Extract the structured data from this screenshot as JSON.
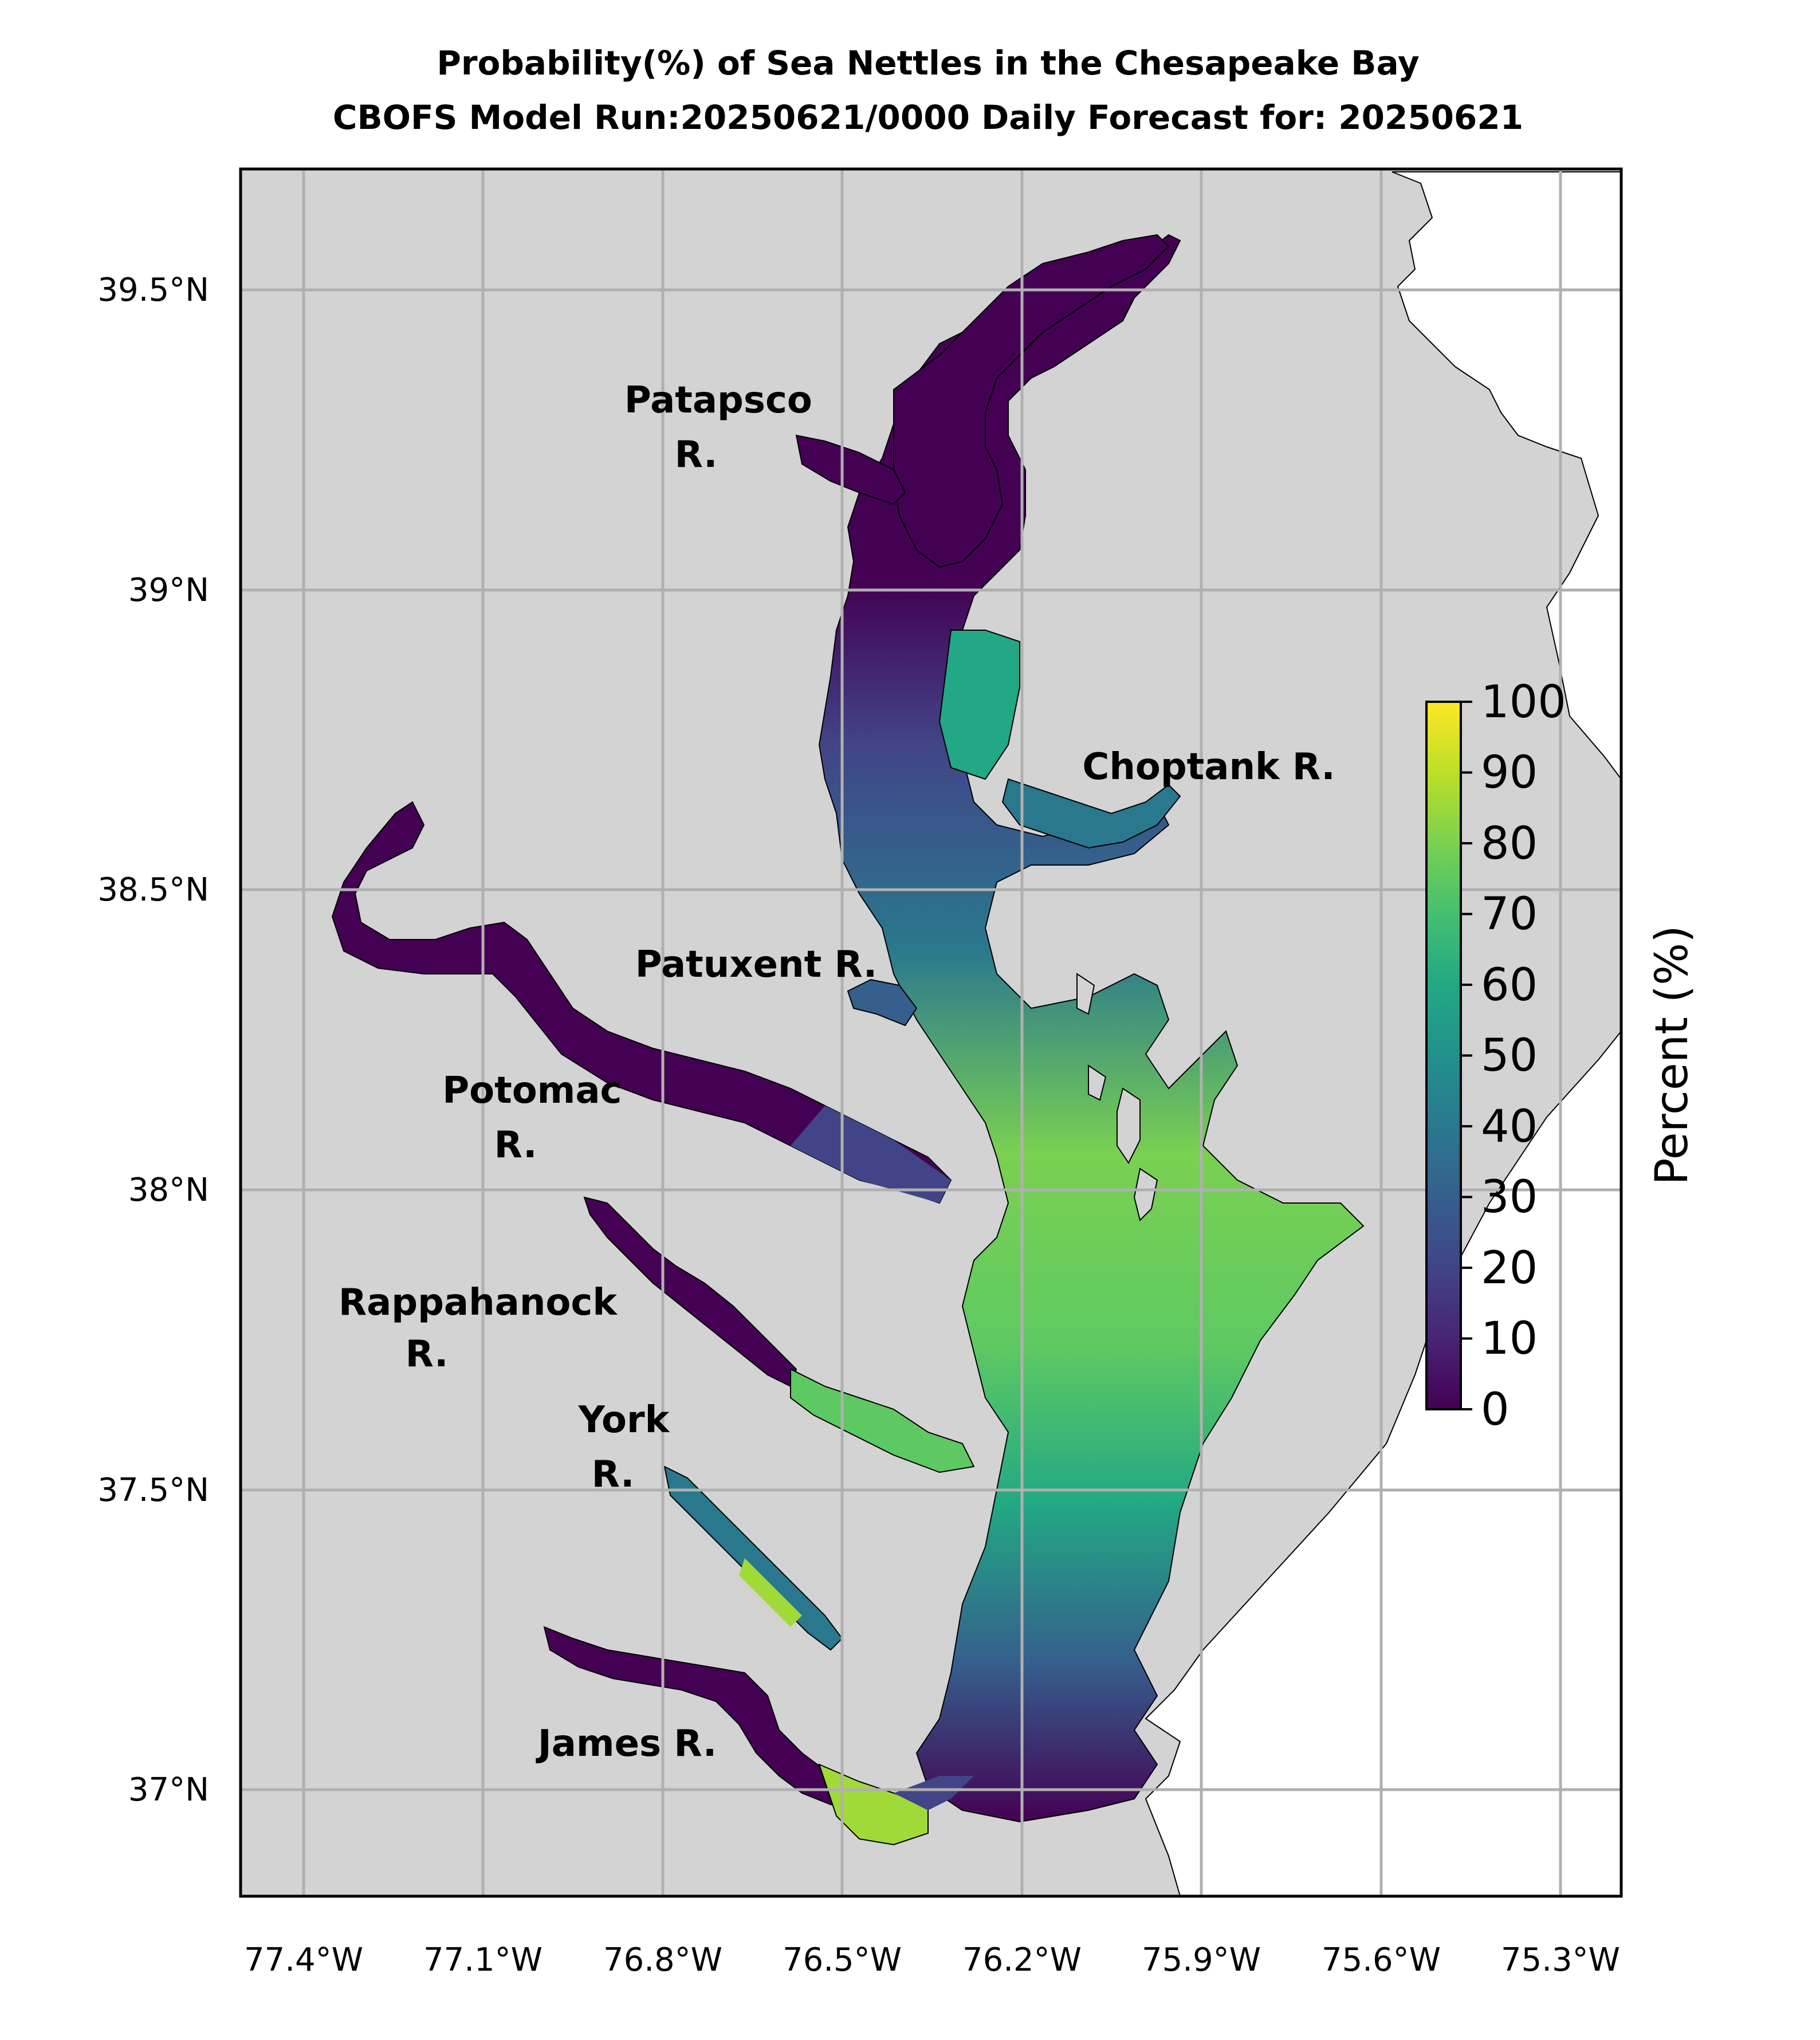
{
  "figure": {
    "title_line1": "Probability(%) of Sea Nettles in the Chesapeake Bay",
    "title_line2": "CBOFS Model Run:20250621/0000 Daily Forecast for: 20250621"
  },
  "map": {
    "lat_range": [
      36.75,
      39.7
    ],
    "lon_range": [
      -77.5,
      -75.2
    ],
    "grid": true,
    "land_color": "#d3d3d3",
    "ocean_color": "#ffffff",
    "grid_color": "#b0b0b0",
    "lat_ticks": [
      39.5,
      39.0,
      38.5,
      38.0,
      37.5,
      37.0
    ],
    "lat_tick_labels": [
      "39.5°N",
      "39°N",
      "38.5°N",
      "38°N",
      "37.5°N",
      "37°N"
    ],
    "lon_ticks": [
      -77.4,
      -77.1,
      -76.8,
      -76.5,
      -76.2,
      -75.9,
      -75.6,
      -75.3
    ],
    "lon_tick_labels": [
      "77.4°W",
      "77.1°W",
      "76.8°W",
      "76.5°W",
      "76.2°W",
      "75.9°W",
      "75.6°W",
      "75.3°W"
    ],
    "river_labels": [
      {
        "line1": "Patapsco",
        "line2": "R."
      },
      {
        "line1": "Choptank R.",
        "line2": ""
      },
      {
        "line1": "Patuxent R.",
        "line2": ""
      },
      {
        "line1": "Potomac",
        "line2": "R."
      },
      {
        "line1": "Rappahanock",
        "line2": "R."
      },
      {
        "line1": "York",
        "line2": "R."
      },
      {
        "line1": "James R.",
        "line2": ""
      }
    ]
  },
  "colorbar": {
    "label": "Percent (%)",
    "colormap": "viridis",
    "range": [
      0,
      100
    ],
    "tick_labels": [
      "0",
      "10",
      "20",
      "30",
      "40",
      "50",
      "60",
      "70",
      "80",
      "90",
      "100"
    ]
  }
}
